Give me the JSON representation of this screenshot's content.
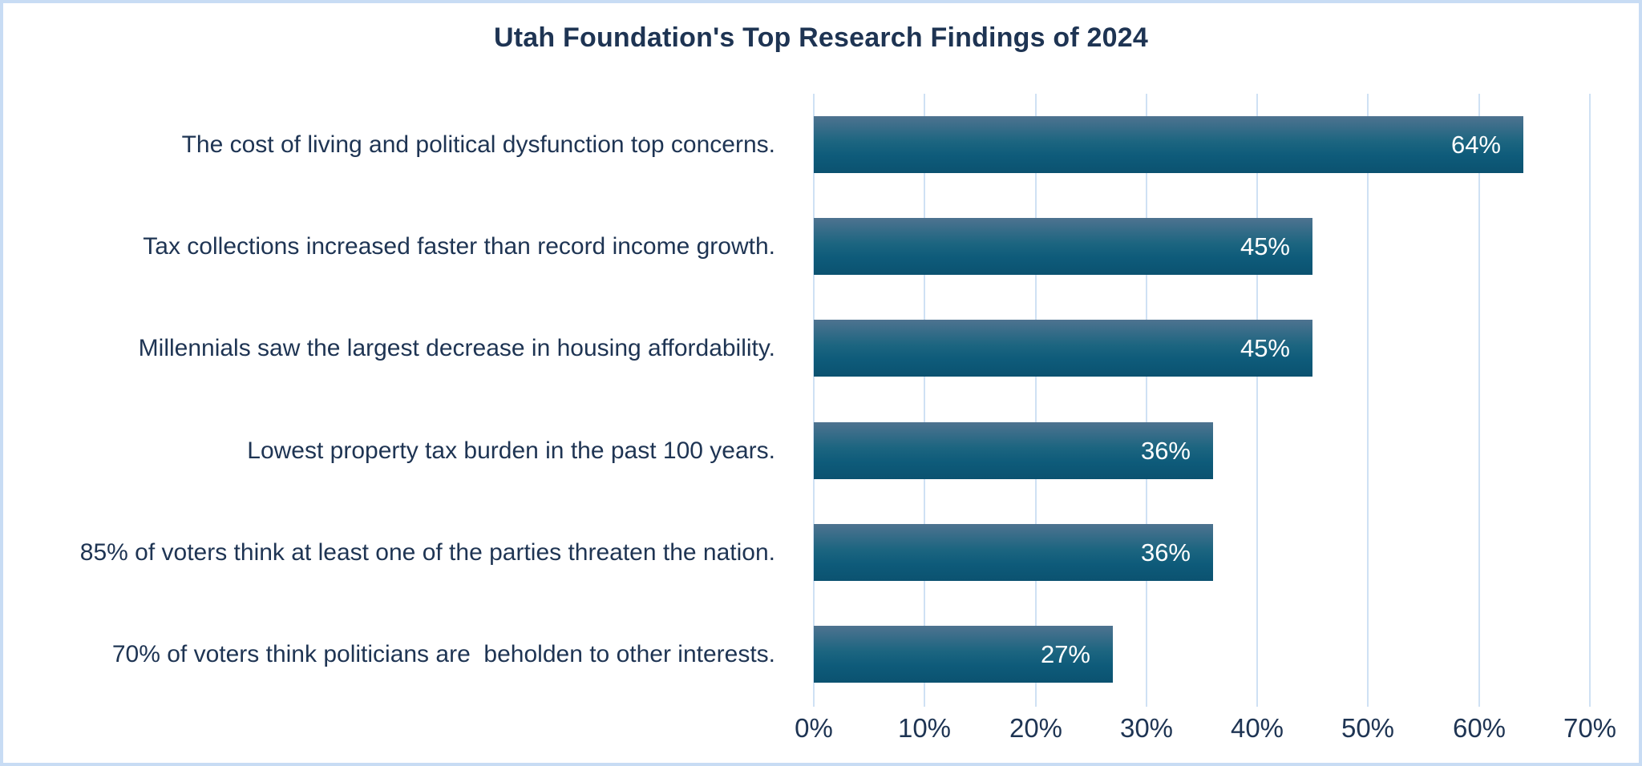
{
  "title": "Utah Foundation's Top Research Findings of 2024",
  "colors": {
    "bar_gradient_top": "#4e7390",
    "bar_gradient_bottom": "#0b5270",
    "text_navy": "#1e3453",
    "gridline": "#cfe1f4",
    "frame_border": "#c8dcf4",
    "value_label_text": "#ffffff",
    "background": "#ffffff"
  },
  "chart_data": {
    "type": "bar",
    "orientation": "horizontal",
    "title": "Utah Foundation's Top Research Findings of 2024",
    "categories": [
      "The cost of living and political dysfunction top concerns.",
      "Tax collections increased faster than record income growth.",
      "Millennials saw the largest decrease in housing affordability.",
      "Lowest property tax burden in the past 100 years.",
      "85% of voters think at least one of the parties threaten the nation.",
      "70% of voters think politicians are  beholden to other interests."
    ],
    "values": [
      64,
      45,
      45,
      36,
      36,
      27
    ],
    "value_labels": [
      "64%",
      "45%",
      "45%",
      "36%",
      "36%",
      "27%"
    ],
    "xlabel": "",
    "ylabel": "",
    "xlim": [
      0,
      70
    ],
    "x_ticks": [
      "0%",
      "10%",
      "20%",
      "30%",
      "40%",
      "50%",
      "60%",
      "70%"
    ],
    "grid": "vertical-only",
    "value_label_position": "inside-end",
    "legend": "none"
  }
}
